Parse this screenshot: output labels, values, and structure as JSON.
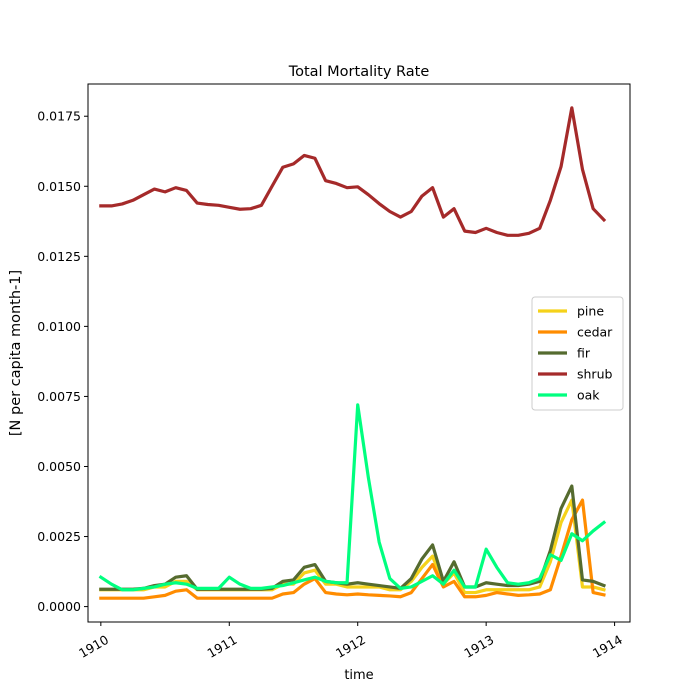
{
  "chart_data": {
    "type": "line",
    "title": "Total Mortality Rate",
    "xlabel": "time",
    "ylabel": "[N per capita month-1]",
    "xlim": [
      1909.9,
      1914.12
    ],
    "ylim": [
      -0.00055,
      0.01865
    ],
    "x_ticks": [
      1910,
      1911,
      1912,
      1913,
      1914
    ],
    "x_tick_labels": [
      "1910",
      "1911",
      "1912",
      "1913",
      "1914"
    ],
    "y_ticks": [
      0.0,
      0.0025,
      0.005,
      0.0075,
      0.01,
      0.0125,
      0.015,
      0.0175
    ],
    "y_tick_labels": [
      "0.0000",
      "0.0025",
      "0.0050",
      "0.0075",
      "0.0100",
      "0.0125",
      "0.0150",
      "0.0175"
    ],
    "grid": false,
    "legend_position": "center-right",
    "x": [
      1910.0,
      1910.083,
      1910.167,
      1910.25,
      1910.333,
      1910.417,
      1910.5,
      1910.583,
      1910.667,
      1910.75,
      1910.833,
      1910.917,
      1911.0,
      1911.083,
      1911.167,
      1911.25,
      1911.333,
      1911.417,
      1911.5,
      1911.583,
      1911.667,
      1911.75,
      1911.833,
      1911.917,
      1912.0,
      1912.083,
      1912.167,
      1912.25,
      1912.333,
      1912.417,
      1912.5,
      1912.583,
      1912.667,
      1912.75,
      1912.833,
      1912.917,
      1913.0,
      1913.083,
      1913.167,
      1913.25,
      1913.333,
      1913.417,
      1913.5,
      1913.583,
      1913.667,
      1913.75,
      1913.833,
      1913.917
    ],
    "series": [
      {
        "name": "pine",
        "color": "#f5d21a",
        "values": [
          0.0006,
          0.0006,
          0.0006,
          0.0006,
          0.0006,
          0.0007,
          0.0007,
          0.0009,
          0.0009,
          0.0006,
          0.0006,
          0.0006,
          0.0006,
          0.0006,
          0.0006,
          0.0006,
          0.0006,
          0.0008,
          0.0008,
          0.0012,
          0.0013,
          0.0008,
          0.0008,
          0.0007,
          0.0007,
          0.0007,
          0.0007,
          0.0006,
          0.0006,
          0.0009,
          0.0014,
          0.0018,
          0.0008,
          0.0012,
          0.0005,
          0.0005,
          0.0006,
          0.0006,
          0.0006,
          0.0006,
          0.0006,
          0.0007,
          0.0016,
          0.003,
          0.0038,
          0.0007,
          0.0007,
          0.0006
        ]
      },
      {
        "name": "cedar",
        "color": "#ff8c00",
        "values": [
          0.0003,
          0.0003,
          0.0003,
          0.0003,
          0.0003,
          0.00035,
          0.0004,
          0.00055,
          0.0006,
          0.0003,
          0.0003,
          0.0003,
          0.0003,
          0.0003,
          0.0003,
          0.0003,
          0.0003,
          0.00045,
          0.0005,
          0.0008,
          0.001,
          0.0005,
          0.00045,
          0.00042,
          0.00045,
          0.00042,
          0.0004,
          0.00038,
          0.00035,
          0.0005,
          0.001,
          0.0015,
          0.0007,
          0.0009,
          0.00035,
          0.00035,
          0.0004,
          0.0005,
          0.00045,
          0.0004,
          0.00042,
          0.00045,
          0.0006,
          0.0018,
          0.0031,
          0.0038,
          0.0005,
          0.00042
        ]
      },
      {
        "name": "fir",
        "color": "#556b2f",
        "values": [
          0.00062,
          0.00062,
          0.00062,
          0.00062,
          0.00065,
          0.00075,
          0.0008,
          0.00105,
          0.0011,
          0.00062,
          0.00062,
          0.00062,
          0.00062,
          0.00062,
          0.00062,
          0.00062,
          0.00065,
          0.0009,
          0.00095,
          0.0014,
          0.0015,
          0.0009,
          0.00085,
          0.0008,
          0.00085,
          0.0008,
          0.00075,
          0.0007,
          0.00065,
          0.001,
          0.0017,
          0.0022,
          0.0009,
          0.0016,
          0.0007,
          0.0007,
          0.00085,
          0.0008,
          0.00075,
          0.00075,
          0.0008,
          0.0009,
          0.002,
          0.0035,
          0.0043,
          0.00095,
          0.0009,
          0.00075
        ]
      },
      {
        "name": "shrub",
        "color": "#a52a2a",
        "values": [
          0.0143,
          0.0143,
          0.01437,
          0.0145,
          0.0147,
          0.0149,
          0.0148,
          0.01495,
          0.01485,
          0.0144,
          0.01435,
          0.01432,
          0.01425,
          0.01418,
          0.0142,
          0.01432,
          0.015,
          0.01568,
          0.0158,
          0.0161,
          0.016,
          0.0152,
          0.0151,
          0.01495,
          0.01498,
          0.0147,
          0.01438,
          0.0141,
          0.0139,
          0.0141,
          0.01465,
          0.01495,
          0.0139,
          0.0142,
          0.0134,
          0.01335,
          0.0135,
          0.01335,
          0.01325,
          0.01325,
          0.01332,
          0.0135,
          0.0145,
          0.0157,
          0.0178,
          0.0156,
          0.0142,
          0.0138
        ]
      },
      {
        "name": "oak",
        "color": "#00ff7f",
        "values": [
          0.00105,
          0.0008,
          0.0006,
          0.0006,
          0.00065,
          0.0007,
          0.0008,
          0.00085,
          0.0008,
          0.00065,
          0.00065,
          0.00065,
          0.00105,
          0.0008,
          0.00065,
          0.00065,
          0.0007,
          0.00075,
          0.00085,
          0.00095,
          0.00105,
          0.0009,
          0.00085,
          0.00085,
          0.0072,
          0.0046,
          0.0023,
          0.001,
          0.00065,
          0.0007,
          0.0009,
          0.0011,
          0.0008,
          0.0013,
          0.0007,
          0.0007,
          0.00205,
          0.0014,
          0.00085,
          0.0008,
          0.00085,
          0.001,
          0.00185,
          0.00165,
          0.0026,
          0.00235,
          0.0027,
          0.003
        ]
      }
    ]
  }
}
